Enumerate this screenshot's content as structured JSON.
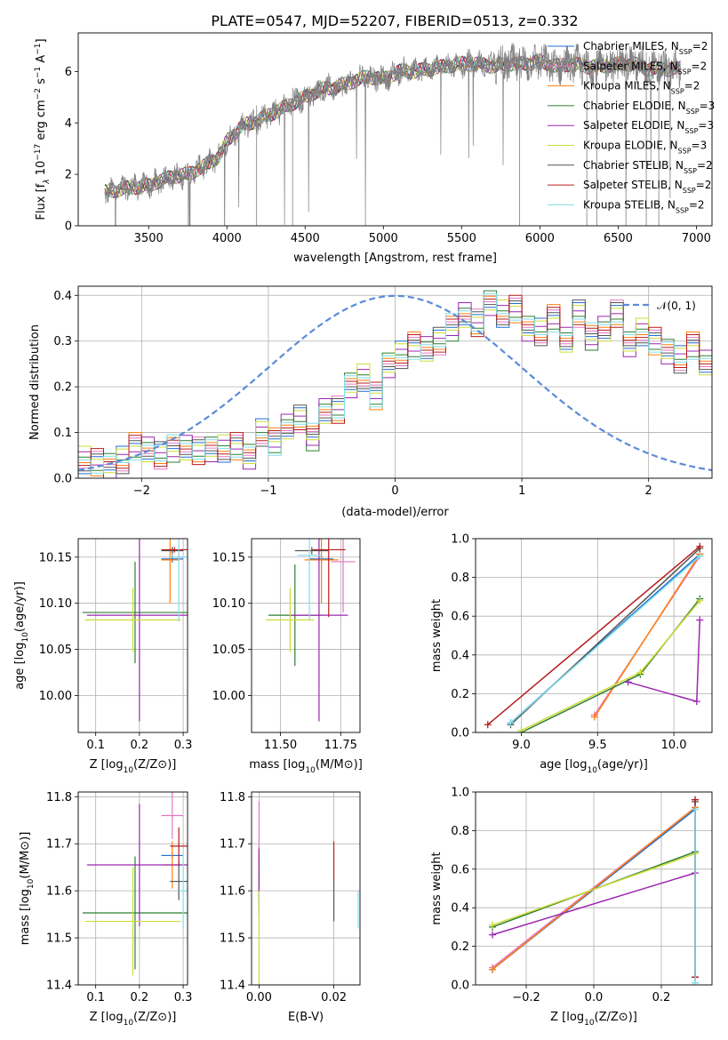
{
  "figure": {
    "title": "PLATE=0547, MJD=52207, FIBERID=0513, z=0.332"
  },
  "series_styles": [
    {
      "name": "Chabrier MILES, N$_{SSP}$=2",
      "label_main": "Chabrier MILES, N",
      "label_sub": "SSP",
      "label_tail": "=2",
      "color": "#1f6fd1"
    },
    {
      "name": "Salpeter MILES, N$_{SSP}$=2",
      "label_main": "Salpeter MILES, N",
      "label_sub": "SSP",
      "label_tail": "=2",
      "color": "#e377c2"
    },
    {
      "name": "Kroupa MILES, N$_{SSP}$=2",
      "label_main": "Kroupa MILES, N",
      "label_sub": "SSP",
      "label_tail": "=2",
      "color": "#ff7f0e"
    },
    {
      "name": "Chabrier ELODIE, N$_{SSP}$=3",
      "label_main": "Chabrier ELODIE, N",
      "label_sub": "SSP",
      "label_tail": "=3",
      "color": "#2e7d32"
    },
    {
      "name": "Salpeter ELODIE, N$_{SSP}$=3",
      "label_main": "Salpeter ELODIE, N",
      "label_sub": "SSP",
      "label_tail": "=3",
      "color": "#9c27b0"
    },
    {
      "name": "Kroupa ELODIE, N$_{SSP}$=3",
      "label_main": "Kroupa ELODIE, N",
      "label_sub": "SSP",
      "label_tail": "=3",
      "color": "#cddc39"
    },
    {
      "name": "Chabrier STELIB, N$_{SSP}$=2",
      "label_main": "Chabrier STELIB, N",
      "label_sub": "SSP",
      "label_tail": "=2",
      "color": "#555555"
    },
    {
      "name": "Salpeter STELIB, N$_{SSP}$=2",
      "label_main": "Salpeter STELIB, N",
      "label_sub": "SSP",
      "label_tail": "=2",
      "color": "#b71c1c"
    },
    {
      "name": "Kroupa STELIB, N$_{SSP}$=2",
      "label_main": "Kroupa STELIB, N",
      "label_sub": "SSP",
      "label_tail": "=2",
      "color": "#80deea"
    }
  ],
  "chart_data": [
    {
      "id": "spectrum",
      "type": "line",
      "title": "PLATE=0547, MJD=52207, FIBERID=0513, z=0.332",
      "xlabel": "wavelength [Angstrom, rest frame]",
      "ylabel": "Flux [f_λ 10^-17 erg cm^-2 s^-1 A^-1]",
      "xlim": [
        3050,
        7100
      ],
      "ylim": [
        0,
        7.5
      ],
      "xticks": [
        3500,
        4000,
        4500,
        5000,
        5500,
        6000,
        6500,
        7000
      ],
      "yticks": [
        0,
        2,
        4,
        6
      ],
      "legend_position": "top-right",
      "data_color": "#808080",
      "continuum": {
        "x": [
          3220,
          3300,
          3400,
          3500,
          3550,
          3650,
          3750,
          3850,
          3950,
          4000,
          4100,
          4200,
          4300,
          4400,
          4500,
          4600,
          4700,
          4800,
          4900,
          5000,
          5100,
          5200,
          5300,
          5400,
          5500,
          5600,
          5700,
          5800,
          5900,
          6000,
          6100,
          6200,
          6300,
          6400,
          6500,
          6600,
          6700,
          6800,
          6900
        ],
        "y": [
          1.3,
          1.4,
          1.5,
          1.55,
          1.7,
          1.9,
          2.0,
          2.3,
          2.7,
          3.3,
          3.9,
          4.1,
          4.4,
          4.7,
          5.0,
          5.3,
          5.4,
          5.6,
          5.8,
          5.7,
          6.0,
          6.0,
          6.1,
          6.2,
          6.3,
          6.3,
          6.2,
          6.3,
          6.3,
          6.4,
          6.2,
          6.3,
          6.2,
          6.2,
          6.3,
          6.3,
          6.1,
          6.1,
          6.1
        ]
      }
    },
    {
      "id": "residuals",
      "type": "histogram",
      "xlabel": "(data-model)/error",
      "ylabel": "Normed distribution",
      "xlim": [
        -2.5,
        2.5
      ],
      "ylim": [
        0,
        0.42
      ],
      "xticks": [
        -2,
        -1,
        0,
        1,
        2
      ],
      "yticks": [
        0.0,
        0.1,
        0.2,
        0.3,
        0.4
      ],
      "legend": "𝒩(0, 1)",
      "legend_position": "top-right",
      "gaussian": {
        "mean": 0,
        "sigma": 1,
        "color": "#5b8bd9"
      },
      "bin_width": 0.1,
      "bins_start": -2.5,
      "reference_values": [
        0.04,
        0.035,
        0.03,
        0.04,
        0.07,
        0.06,
        0.05,
        0.065,
        0.07,
        0.06,
        0.06,
        0.065,
        0.07,
        0.05,
        0.1,
        0.08,
        0.11,
        0.13,
        0.09,
        0.15,
        0.15,
        0.2,
        0.22,
        0.18,
        0.25,
        0.27,
        0.29,
        0.28,
        0.3,
        0.33,
        0.36,
        0.34,
        0.38,
        0.36,
        0.37,
        0.33,
        0.32,
        0.35,
        0.3,
        0.36,
        0.31,
        0.33,
        0.36,
        0.29,
        0.32,
        0.3,
        0.28,
        0.26,
        0.29,
        0.25,
        0.27,
        0.31,
        0.28,
        0.3,
        0.27,
        0.26,
        0.24,
        0.22,
        0.2,
        0.18,
        0.2,
        0.17,
        0.15,
        0.14,
        0.13,
        0.12,
        0.1,
        0.09,
        0.08,
        0.07,
        0.06,
        0.06,
        0.05,
        0.055,
        0.05
      ]
    },
    {
      "id": "age-vs-Z",
      "type": "errorbar",
      "xlabel": "Z [log10(Z/Z⊙)]",
      "ylabel": "age  [log10(age/yr)]",
      "xlim": [
        0.06,
        0.31
      ],
      "ylim": [
        9.96,
        10.17
      ],
      "xticks": [
        0.1,
        0.2,
        0.3
      ],
      "yticks": [
        10.0,
        10.05,
        10.1,
        10.15
      ],
      "points": [
        {
          "series": 0,
          "x": 0.275,
          "y": 10.148,
          "xerr": 0.025,
          "yerr": 0.004
        },
        {
          "series": 1,
          "x": 0.29,
          "y": 10.15,
          "xerr": 0.01,
          "yerr": 0.004
        },
        {
          "series": 2,
          "x": 0.27,
          "y": 10.147,
          "xerr": 0.02,
          "yerr": 0.047
        },
        {
          "series": 3,
          "x": 0.19,
          "y": 10.09,
          "xerr": 0.12,
          "yerr": 0.055
        },
        {
          "series": 4,
          "x": 0.2,
          "y": 10.087,
          "xerr": 0.12,
          "yerr": 0.115
        },
        {
          "series": 5,
          "x": 0.185,
          "y": 10.082,
          "xerr": 0.11,
          "yerr": 0.035
        },
        {
          "series": 6,
          "x": 0.275,
          "y": 10.157,
          "xerr": 0.025,
          "yerr": 0.004
        },
        {
          "series": 7,
          "x": 0.28,
          "y": 10.158,
          "xerr": 0.03,
          "yerr": 0.003
        },
        {
          "series": 8,
          "x": 0.29,
          "y": 10.15,
          "xerr": 0.02,
          "yerr": 0.07
        }
      ]
    },
    {
      "id": "age-vs-mass",
      "type": "errorbar",
      "xlabel": "mass [log10(M/M⊙)]",
      "ylabel": "",
      "xlim": [
        11.38,
        11.83
      ],
      "ylim": [
        9.96,
        10.17
      ],
      "xticks": [
        11.5,
        11.75
      ],
      "yticks": [
        10.0,
        10.05,
        10.1,
        10.15
      ],
      "points": [
        {
          "series": 0,
          "x": 11.67,
          "y": 10.148,
          "xerr": 0.05,
          "yerr": 0.004
        },
        {
          "series": 1,
          "x": 11.76,
          "y": 10.145,
          "xerr": 0.05,
          "yerr": 0.055
        },
        {
          "series": 2,
          "x": 11.67,
          "y": 10.147,
          "xerr": 0.07,
          "yerr": 0.047
        },
        {
          "series": 3,
          "x": 11.56,
          "y": 10.087,
          "xerr": 0.11,
          "yerr": 0.055
        },
        {
          "series": 4,
          "x": 11.66,
          "y": 10.087,
          "xerr": 0.12,
          "yerr": 0.115
        },
        {
          "series": 5,
          "x": 11.54,
          "y": 10.082,
          "xerr": 0.1,
          "yerr": 0.035
        },
        {
          "series": 6,
          "x": 11.63,
          "y": 10.157,
          "xerr": 0.07,
          "yerr": 0.004
        },
        {
          "series": 7,
          "x": 11.7,
          "y": 10.158,
          "xerr": 0.07,
          "yerr": 0.073
        },
        {
          "series": 8,
          "x": 11.62,
          "y": 10.152,
          "xerr": 0.05,
          "yerr": 0.07
        }
      ]
    },
    {
      "id": "weight-vs-age",
      "type": "line",
      "xlabel": "age  [log10(age/yr)]",
      "ylabel": "mass weight",
      "xlim": [
        8.7,
        10.25
      ],
      "ylim": [
        0,
        1
      ],
      "xticks": [
        9.0,
        9.5,
        10.0
      ],
      "yticks": [
        0.0,
        0.2,
        0.4,
        0.6,
        0.8,
        1.0
      ],
      "lines": [
        {
          "series": 0,
          "x": [
            8.93,
            10.17
          ],
          "y": [
            0.05,
            0.92
          ]
        },
        {
          "series": 1,
          "x": [
            9.48,
            10.17
          ],
          "y": [
            0.09,
            0.91
          ]
        },
        {
          "series": 2,
          "x": [
            9.48,
            10.17
          ],
          "y": [
            0.08,
            0.92
          ]
        },
        {
          "series": 3,
          "x": [
            9.0,
            9.78,
            10.17
          ],
          "y": [
            0.0,
            0.3,
            0.69
          ]
        },
        {
          "series": 4,
          "x": [
            9.7,
            10.15,
            10.17
          ],
          "y": [
            0.26,
            0.16,
            0.58
          ]
        },
        {
          "series": 5,
          "x": [
            9.0,
            9.78,
            10.17
          ],
          "y": [
            0.01,
            0.31,
            0.68
          ]
        },
        {
          "series": 6,
          "x": [
            8.93,
            10.17
          ],
          "y": [
            0.04,
            0.95
          ]
        },
        {
          "series": 7,
          "x": [
            8.78,
            10.17
          ],
          "y": [
            0.04,
            0.96
          ]
        },
        {
          "series": 8,
          "x": [
            8.93,
            10.17
          ],
          "y": [
            0.05,
            0.91
          ]
        }
      ]
    },
    {
      "id": "mass-vs-Z",
      "type": "errorbar",
      "xlabel": "Z [log10(Z/Z⊙)]",
      "ylabel": "mass [log10(M/M⊙)]",
      "xlim": [
        0.06,
        0.31
      ],
      "ylim": [
        11.4,
        11.81
      ],
      "xticks": [
        0.1,
        0.2,
        0.3
      ],
      "yticks": [
        11.4,
        11.5,
        11.6,
        11.7,
        11.8
      ],
      "points": [
        {
          "series": 0,
          "x": 0.275,
          "y": 11.675,
          "xerr": 0.025,
          "yerr": 0.005
        },
        {
          "series": 1,
          "x": 0.275,
          "y": 11.76,
          "xerr": 0.025,
          "yerr": 0.05
        },
        {
          "series": 2,
          "x": 0.275,
          "y": 11.655,
          "xerr": 0.02,
          "yerr": 0.05
        },
        {
          "series": 3,
          "x": 0.19,
          "y": 11.553,
          "xerr": 0.12,
          "yerr": 0.12
        },
        {
          "series": 4,
          "x": 0.2,
          "y": 11.655,
          "xerr": 0.12,
          "yerr": 0.13
        },
        {
          "series": 5,
          "x": 0.185,
          "y": 11.535,
          "xerr": 0.11,
          "yerr": 0.115
        },
        {
          "series": 6,
          "x": 0.29,
          "y": 11.62,
          "xerr": 0.02,
          "yerr": 0.04
        },
        {
          "series": 7,
          "x": 0.29,
          "y": 11.695,
          "xerr": 0.02,
          "yerr": 0.04
        },
        {
          "series": 8,
          "x": 0.3,
          "y": 11.6,
          "xerr": 0.01,
          "yerr": 0.08
        }
      ]
    },
    {
      "id": "mass-vs-EBV",
      "type": "errorbar",
      "xlabel": "E(B-V)",
      "ylabel": "",
      "xlim": [
        -0.002,
        0.027
      ],
      "ylim": [
        11.4,
        11.81
      ],
      "xticks": [
        0.0,
        0.02
      ],
      "yticks": [
        11.4,
        11.5,
        11.6,
        11.7,
        11.8
      ],
      "points": [
        {
          "series": 0,
          "x": 0.0,
          "y": 11.675,
          "xerr": 0,
          "yerr": 0.02
        },
        {
          "series": 1,
          "x": 0.0,
          "y": 11.72,
          "xerr": 0,
          "yerr": 0.07
        },
        {
          "series": 2,
          "x": 0.0,
          "y": 11.64,
          "xerr": 0,
          "yerr": 0.05
        },
        {
          "series": 3,
          "x": 0.0,
          "y": 11.6,
          "xerr": 0,
          "yerr": 0.05
        },
        {
          "series": 4,
          "x": 0.0,
          "y": 11.63,
          "xerr": 0,
          "yerr": 0.06
        },
        {
          "series": 5,
          "x": 0.0,
          "y": 11.5,
          "xerr": 0,
          "yerr": 0.1
        },
        {
          "series": 6,
          "x": 0.02,
          "y": 11.58,
          "xerr": 0,
          "yerr": 0.045
        },
        {
          "series": 7,
          "x": 0.02,
          "y": 11.665,
          "xerr": 0,
          "yerr": 0.04
        },
        {
          "series": 8,
          "x": 0.0265,
          "y": 11.56,
          "xerr": 0,
          "yerr": 0.04
        }
      ]
    },
    {
      "id": "weight-vs-Z",
      "type": "line",
      "xlabel": "Z [log10(Z/Z⊙)]",
      "ylabel": "mass weight",
      "xlim": [
        -0.35,
        0.35
      ],
      "ylim": [
        0,
        1
      ],
      "xticks": [
        -0.2,
        0.0,
        0.2
      ],
      "yticks": [
        0.0,
        0.2,
        0.4,
        0.6,
        0.8,
        1.0
      ],
      "lines": [
        {
          "series": 0,
          "x": [
            -0.3,
            0.3
          ],
          "y": [
            0.08,
            0.91
          ]
        },
        {
          "series": 1,
          "x": [
            -0.3,
            0.3
          ],
          "y": [
            0.09,
            0.92
          ]
        },
        {
          "series": 2,
          "x": [
            -0.3,
            0.3
          ],
          "y": [
            0.08,
            0.92
          ]
        },
        {
          "series": 3,
          "x": [
            -0.3,
            0.3
          ],
          "y": [
            0.3,
            0.69
          ]
        },
        {
          "series": 4,
          "x": [
            -0.3,
            0.3
          ],
          "y": [
            0.26,
            0.58
          ]
        },
        {
          "series": 5,
          "x": [
            -0.3,
            0.3
          ],
          "y": [
            0.31,
            0.68
          ]
        },
        {
          "series": 6,
          "x": [
            0.3,
            0.3
          ],
          "y": [
            0.04,
            0.95
          ]
        },
        {
          "series": 7,
          "x": [
            0.3,
            0.3
          ],
          "y": [
            0.04,
            0.96
          ]
        },
        {
          "series": 8,
          "x": [
            0.3,
            0.3
          ],
          "y": [
            0.01,
            0.91
          ]
        }
      ]
    }
  ]
}
